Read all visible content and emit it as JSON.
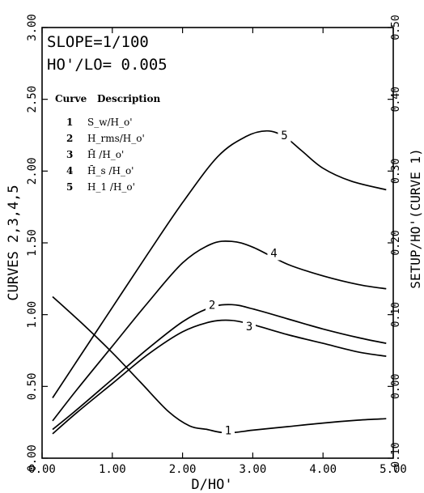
{
  "chart_data": {
    "type": "line",
    "xlabel": "D/HO'",
    "ylabel_left": "CURVES 2,3,4,5",
    "ylabel_right": "SETUP/HO'(CURVE 1)",
    "annotation_lines": [
      "SLOPE=1/100",
      "HO'/LO= 0.005"
    ],
    "legend_header": {
      "curve": "Curve",
      "description": "Description"
    },
    "legend": [
      {
        "id": "1",
        "description": "S_w/H_o'"
      },
      {
        "id": "2",
        "description": "H_rms/H_o'"
      },
      {
        "id": "3",
        "description": "H̄ /H_o'"
      },
      {
        "id": "4",
        "description": "H̄_s /H_o'"
      },
      {
        "id": "5",
        "description": "H_1 /H_o'"
      }
    ],
    "xlim": [
      0,
      5
    ],
    "ylim_left": [
      0,
      3
    ],
    "ylim_right": [
      -0.1,
      0.5
    ],
    "xticks": [
      "0.00",
      "1.00",
      "2.00",
      "3.00",
      "4.00",
      "5.00"
    ],
    "yticks_left": [
      "0.00",
      "0.50",
      "1.00",
      "1.50",
      "2.00",
      "2.50",
      "3.00"
    ],
    "yticks_right": [
      "-0.10",
      "0.00",
      "0.10",
      "0.20",
      "0.30",
      "0.40",
      "0.50"
    ],
    "series": [
      {
        "name": "1",
        "axis": "right",
        "label": "1",
        "label_at": [
          2.65,
          -0.061
        ],
        "x": [
          0.15,
          0.6,
          1.0,
          1.4,
          1.8,
          2.1,
          2.35,
          2.55,
          2.75,
          3.0,
          3.5,
          4.0,
          4.5,
          4.9
        ],
        "y": [
          0.125,
          0.085,
          0.047,
          0.006,
          -0.035,
          -0.055,
          -0.06,
          -0.064,
          -0.064,
          -0.061,
          -0.056,
          -0.051,
          -0.047,
          -0.045
        ]
      },
      {
        "name": "2",
        "axis": "left",
        "label": "2",
        "label_at": [
          2.42,
          1.07
        ],
        "x": [
          0.15,
          0.5,
          1.0,
          1.5,
          2.0,
          2.4,
          2.7,
          3.0,
          3.5,
          4.0,
          4.5,
          4.9
        ],
        "y": [
          0.2,
          0.34,
          0.55,
          0.76,
          0.95,
          1.05,
          1.07,
          1.04,
          0.97,
          0.9,
          0.84,
          0.8
        ]
      },
      {
        "name": "3",
        "axis": "left",
        "label": "3",
        "label_at": [
          2.95,
          0.92
        ],
        "x": [
          0.15,
          0.5,
          1.0,
          1.5,
          2.0,
          2.4,
          2.7,
          3.0,
          3.5,
          4.0,
          4.5,
          4.9
        ],
        "y": [
          0.17,
          0.32,
          0.52,
          0.72,
          0.88,
          0.95,
          0.96,
          0.93,
          0.86,
          0.8,
          0.74,
          0.71
        ]
      },
      {
        "name": "4",
        "axis": "left",
        "label": "4",
        "label_at": [
          3.3,
          1.43
        ],
        "x": [
          0.15,
          0.5,
          1.0,
          1.5,
          2.0,
          2.4,
          2.7,
          3.0,
          3.5,
          4.0,
          4.5,
          4.9
        ],
        "y": [
          0.26,
          0.48,
          0.78,
          1.08,
          1.36,
          1.49,
          1.51,
          1.47,
          1.35,
          1.27,
          1.21,
          1.18
        ]
      },
      {
        "name": "5",
        "axis": "left",
        "label": "5",
        "label_at": [
          3.45,
          2.25
        ],
        "x": [
          0.15,
          0.5,
          1.0,
          1.5,
          2.0,
          2.5,
          2.9,
          3.2,
          3.45,
          3.7,
          4.0,
          4.4,
          4.9
        ],
        "y": [
          0.42,
          0.68,
          1.05,
          1.42,
          1.78,
          2.1,
          2.24,
          2.28,
          2.24,
          2.14,
          2.02,
          1.93,
          1.87
        ]
      }
    ]
  }
}
